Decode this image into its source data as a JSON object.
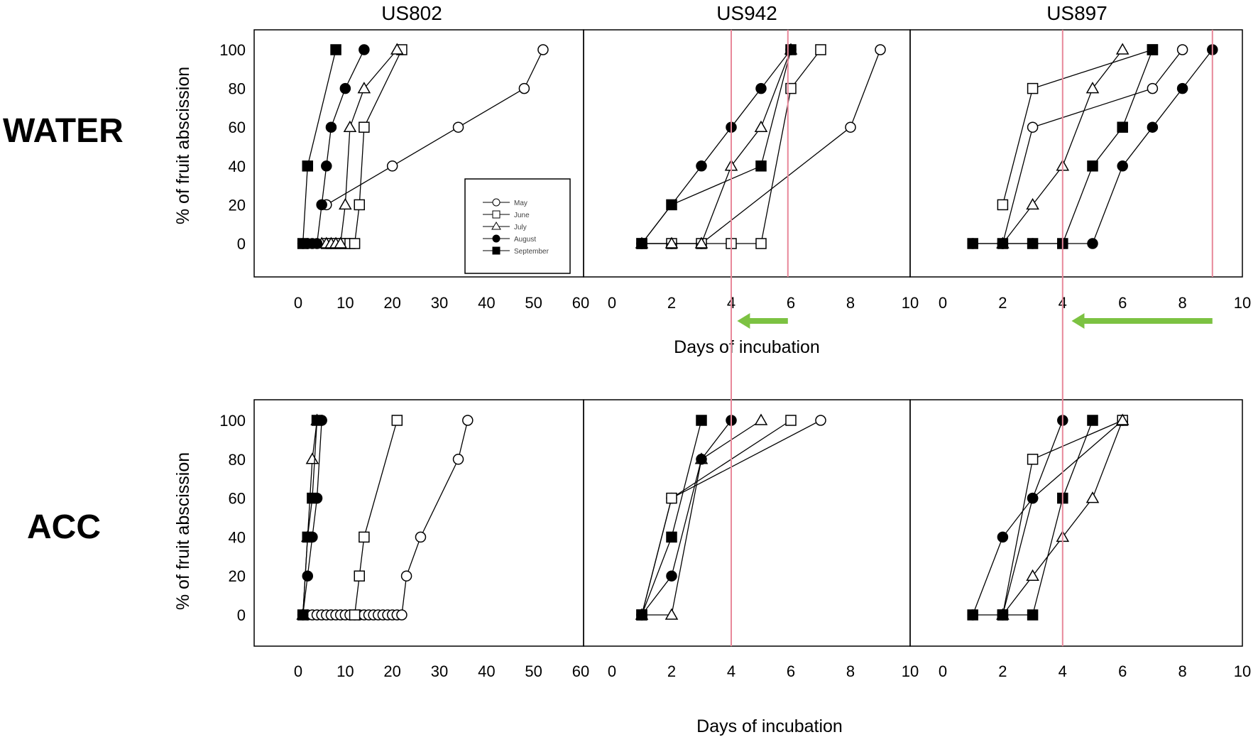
{
  "figure": {
    "columns": [
      "US802",
      "US942",
      "US897"
    ],
    "rows": [
      "WATER",
      "ACC"
    ],
    "y_axis_label": "% of fruit abscission",
    "x_axis_label": "Days of incubation",
    "reference_line_color": "#e8889a",
    "arrow_color": "#7cc242"
  },
  "legend": {
    "entries": [
      {
        "name": "May",
        "marker": "circle-open"
      },
      {
        "name": "June",
        "marker": "square-open"
      },
      {
        "name": "July",
        "marker": "triangle-open"
      },
      {
        "name": "August",
        "marker": "circle-filled"
      },
      {
        "name": "September",
        "marker": "square-filled"
      }
    ]
  },
  "chart_data": [
    {
      "type": "line",
      "title": "US802",
      "row": "WATER",
      "xlim": [
        -10,
        60
      ],
      "ylim": [
        -20,
        110
      ],
      "xticks": [
        0,
        10,
        20,
        30,
        40,
        50,
        60
      ],
      "yticks": [
        0,
        20,
        40,
        60,
        80,
        100
      ],
      "series": [
        {
          "name": "May",
          "points": [
            [
              6,
              20
            ],
            [
              20,
              40
            ],
            [
              34,
              60
            ],
            [
              48,
              80
            ],
            [
              52,
              100
            ]
          ]
        },
        {
          "name": "June",
          "points": [
            [
              6,
              0
            ],
            [
              7,
              0
            ],
            [
              8,
              0
            ],
            [
              9,
              0
            ],
            [
              10,
              0
            ],
            [
              11,
              0
            ],
            [
              12,
              0
            ],
            [
              13,
              20
            ],
            [
              14,
              60
            ],
            [
              22,
              100
            ]
          ]
        },
        {
          "name": "July",
          "points": [
            [
              5,
              0
            ],
            [
              6,
              0
            ],
            [
              7,
              0
            ],
            [
              8,
              0
            ],
            [
              9,
              0
            ],
            [
              10,
              20
            ],
            [
              11,
              60
            ],
            [
              14,
              80
            ],
            [
              21,
              100
            ]
          ]
        },
        {
          "name": "August",
          "points": [
            [
              1,
              0
            ],
            [
              2,
              0
            ],
            [
              3,
              0
            ],
            [
              4,
              0
            ],
            [
              5,
              20
            ],
            [
              6,
              40
            ],
            [
              7,
              60
            ],
            [
              10,
              80
            ],
            [
              14,
              100
            ]
          ]
        },
        {
          "name": "September",
          "points": [
            [
              1,
              0
            ],
            [
              2,
              40
            ],
            [
              8,
              100
            ]
          ]
        }
      ],
      "vlines": [],
      "arrow": null
    },
    {
      "type": "line",
      "title": "US942",
      "row": "WATER",
      "xlim": [
        -1,
        10
      ],
      "ylim": [
        -20,
        110
      ],
      "xticks": [
        0,
        2,
        4,
        6,
        8,
        10
      ],
      "yticks": [
        0,
        20,
        40,
        60,
        80,
        100
      ],
      "series": [
        {
          "name": "May",
          "points": [
            [
              1,
              0
            ],
            [
              2,
              0
            ],
            [
              3,
              0
            ],
            [
              8,
              60
            ],
            [
              9,
              100
            ]
          ]
        },
        {
          "name": "June",
          "points": [
            [
              1,
              0
            ],
            [
              2,
              0
            ],
            [
              3,
              0
            ],
            [
              4,
              0
            ],
            [
              5,
              0
            ],
            [
              6,
              80
            ],
            [
              7,
              100
            ]
          ]
        },
        {
          "name": "July",
          "points": [
            [
              1,
              0
            ],
            [
              2,
              0
            ],
            [
              3,
              0
            ],
            [
              4,
              40
            ],
            [
              5,
              60
            ],
            [
              6,
              100
            ]
          ]
        },
        {
          "name": "August",
          "points": [
            [
              1,
              0
            ],
            [
              3,
              40
            ],
            [
              4,
              60
            ],
            [
              5,
              80
            ],
            [
              6,
              100
            ]
          ]
        },
        {
          "name": "September",
          "points": [
            [
              1,
              0
            ],
            [
              2,
              20
            ],
            [
              5,
              40
            ],
            [
              6,
              100
            ]
          ]
        }
      ],
      "vlines": [
        4,
        5.9
      ],
      "arrow": {
        "from": 5.9,
        "to": 4.2
      }
    },
    {
      "type": "line",
      "title": "US897",
      "row": "WATER",
      "xlim": [
        -1,
        10
      ],
      "ylim": [
        -20,
        110
      ],
      "xticks": [
        0,
        2,
        4,
        6,
        8,
        10
      ],
      "yticks": [
        0,
        20,
        40,
        60,
        80,
        100
      ],
      "series": [
        {
          "name": "May",
          "points": [
            [
              2,
              0
            ],
            [
              3,
              60
            ],
            [
              7,
              80
            ],
            [
              8,
              100
            ]
          ]
        },
        {
          "name": "June",
          "points": [
            [
              2,
              20
            ],
            [
              3,
              80
            ],
            [
              7,
              100
            ]
          ]
        },
        {
          "name": "July",
          "points": [
            [
              2,
              0
            ],
            [
              3,
              20
            ],
            [
              4,
              40
            ],
            [
              5,
              80
            ],
            [
              6,
              100
            ]
          ]
        },
        {
          "name": "August",
          "points": [
            [
              1,
              0
            ],
            [
              2,
              0
            ],
            [
              3,
              0
            ],
            [
              4,
              0
            ],
            [
              5,
              0
            ],
            [
              6,
              40
            ],
            [
              7,
              60
            ],
            [
              8,
              80
            ],
            [
              9,
              100
            ]
          ]
        },
        {
          "name": "September",
          "points": [
            [
              1,
              0
            ],
            [
              2,
              0
            ],
            [
              3,
              0
            ],
            [
              4,
              0
            ],
            [
              5,
              40
            ],
            [
              6,
              60
            ],
            [
              7,
              100
            ]
          ]
        }
      ],
      "vlines": [
        4,
        9
      ],
      "arrow": {
        "from": 9,
        "to": 4.3
      }
    },
    {
      "type": "line",
      "title": "US802",
      "row": "ACC",
      "xlim": [
        -10,
        60
      ],
      "ylim": [
        -20,
        110
      ],
      "xticks": [
        0,
        10,
        20,
        30,
        40,
        50,
        60
      ],
      "yticks": [
        0,
        20,
        40,
        60,
        80,
        100
      ],
      "series": [
        {
          "name": "May",
          "points": [
            [
              2,
              0
            ],
            [
              3,
              0
            ],
            [
              4,
              0
            ],
            [
              5,
              0
            ],
            [
              6,
              0
            ],
            [
              7,
              0
            ],
            [
              8,
              0
            ],
            [
              9,
              0
            ],
            [
              10,
              0
            ],
            [
              11,
              0
            ],
            [
              12,
              0
            ],
            [
              13,
              0
            ],
            [
              14,
              0
            ],
            [
              15,
              0
            ],
            [
              16,
              0
            ],
            [
              17,
              0
            ],
            [
              18,
              0
            ],
            [
              19,
              0
            ],
            [
              20,
              0
            ],
            [
              21,
              0
            ],
            [
              22,
              0
            ],
            [
              23,
              20
            ],
            [
              26,
              40
            ],
            [
              34,
              80
            ],
            [
              36,
              100
            ]
          ]
        },
        {
          "name": "June",
          "points": [
            [
              12,
              0
            ],
            [
              13,
              20
            ],
            [
              14,
              40
            ],
            [
              21,
              100
            ]
          ]
        },
        {
          "name": "July",
          "points": [
            [
              1,
              0
            ],
            [
              2,
              40
            ],
            [
              3,
              80
            ],
            [
              4,
              100
            ]
          ]
        },
        {
          "name": "August",
          "points": [
            [
              1,
              0
            ],
            [
              2,
              20
            ],
            [
              3,
              40
            ],
            [
              4,
              60
            ],
            [
              5,
              100
            ]
          ]
        },
        {
          "name": "September",
          "points": [
            [
              1,
              0
            ],
            [
              2,
              40
            ],
            [
              3,
              60
            ],
            [
              4,
              100
            ]
          ]
        }
      ],
      "vlines": [],
      "arrow": null
    },
    {
      "type": "line",
      "title": "US942",
      "row": "ACC",
      "xlim": [
        -1,
        10
      ],
      "ylim": [
        -20,
        110
      ],
      "xticks": [
        0,
        2,
        4,
        6,
        8,
        10
      ],
      "yticks": [
        0,
        20,
        40,
        60,
        80,
        100
      ],
      "series": [
        {
          "name": "May",
          "points": [
            [
              1,
              0
            ],
            [
              2,
              60
            ],
            [
              7,
              100
            ]
          ]
        },
        {
          "name": "June",
          "points": [
            [
              1,
              0
            ],
            [
              2,
              60
            ],
            [
              6,
              100
            ]
          ]
        },
        {
          "name": "July",
          "points": [
            [
              1,
              0
            ],
            [
              2,
              0
            ],
            [
              3,
              80
            ],
            [
              5,
              100
            ]
          ]
        },
        {
          "name": "August",
          "points": [
            [
              1,
              0
            ],
            [
              2,
              20
            ],
            [
              3,
              80
            ],
            [
              4,
              100
            ]
          ]
        },
        {
          "name": "September",
          "points": [
            [
              1,
              0
            ],
            [
              2,
              40
            ],
            [
              3,
              100
            ]
          ]
        }
      ],
      "vlines": [
        4
      ],
      "arrow": null
    },
    {
      "type": "line",
      "title": "US897",
      "row": "ACC",
      "xlim": [
        -1,
        10
      ],
      "ylim": [
        -20,
        110
      ],
      "xticks": [
        0,
        2,
        4,
        6,
        8,
        10
      ],
      "yticks": [
        0,
        20,
        40,
        60,
        80,
        100
      ],
      "series": [
        {
          "name": "May",
          "points": [
            [
              2,
              0
            ],
            [
              3,
              60
            ],
            [
              6,
              100
            ]
          ]
        },
        {
          "name": "June",
          "points": [
            [
              2,
              0
            ],
            [
              3,
              80
            ],
            [
              6,
              100
            ]
          ]
        },
        {
          "name": "July",
          "points": [
            [
              2,
              0
            ],
            [
              3,
              20
            ],
            [
              4,
              40
            ],
            [
              5,
              60
            ],
            [
              6,
              100
            ]
          ]
        },
        {
          "name": "August",
          "points": [
            [
              1,
              0
            ],
            [
              2,
              40
            ],
            [
              3,
              60
            ],
            [
              4,
              100
            ]
          ]
        },
        {
          "name": "September",
          "points": [
            [
              1,
              0
            ],
            [
              2,
              0
            ],
            [
              3,
              0
            ],
            [
              4,
              60
            ],
            [
              5,
              100
            ]
          ]
        }
      ],
      "vlines": [
        4
      ],
      "arrow": null
    }
  ]
}
